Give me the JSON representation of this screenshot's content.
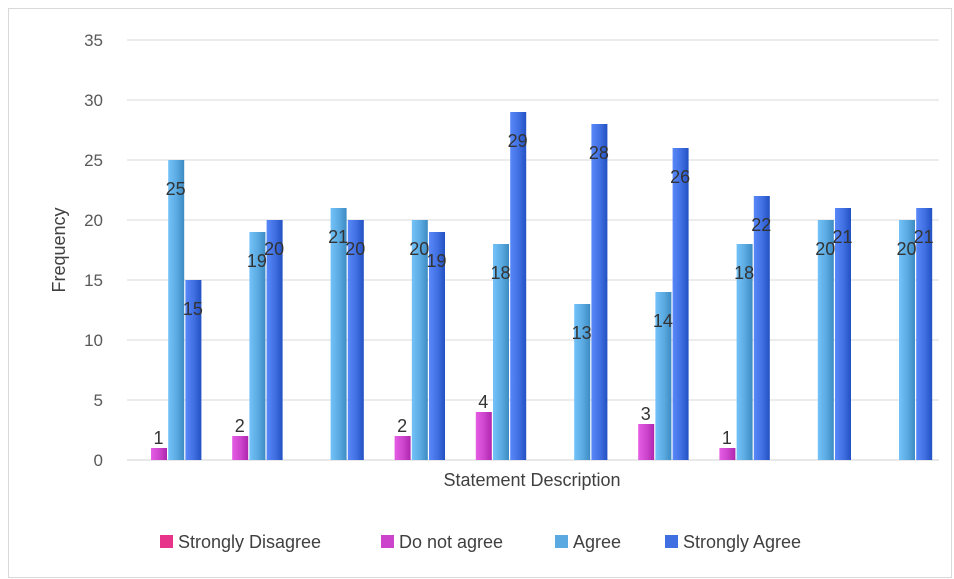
{
  "chart_data": {
    "type": "bar",
    "title": "",
    "xlabel": "Statement Description",
    "ylabel": "Frequency",
    "ylim": [
      0,
      35
    ],
    "yticks": [
      0,
      5,
      10,
      15,
      20,
      25,
      30,
      35
    ],
    "grid": true,
    "legend_position": "bottom",
    "categories": [
      "",
      "",
      "",
      "",
      "",
      "",
      "",
      "",
      "",
      ""
    ],
    "series": [
      {
        "name": "Strongly Disagree",
        "color": "#e8338b",
        "values": [
          0,
          0,
          0,
          0,
          0,
          0,
          0,
          0,
          0,
          0
        ]
      },
      {
        "name": "Do not agree",
        "color": "#cc44cc",
        "values": [
          1,
          2,
          0,
          2,
          4,
          0,
          3,
          1,
          0,
          0
        ]
      },
      {
        "name": "Agree",
        "color": "#5aa9e0",
        "values": [
          25,
          19,
          21,
          20,
          18,
          13,
          14,
          18,
          20,
          20
        ]
      },
      {
        "name": "Strongly Agree",
        "color": "#3f6fe0",
        "values": [
          15,
          20,
          20,
          19,
          29,
          28,
          26,
          22,
          21,
          21
        ]
      }
    ],
    "data_labels": [
      [
        null,
        null,
        null,
        null,
        null,
        null,
        null,
        null,
        null,
        null
      ],
      [
        "1",
        "2",
        null,
        "2",
        "4",
        null,
        "3",
        "1",
        null,
        null
      ],
      [
        "25",
        "19",
        "21",
        "20",
        "18",
        "13",
        "14",
        "18",
        "20",
        "20"
      ],
      [
        "15",
        "20",
        "20",
        "19",
        "29",
        "28",
        "26",
        "22",
        "21",
        "21"
      ]
    ]
  }
}
